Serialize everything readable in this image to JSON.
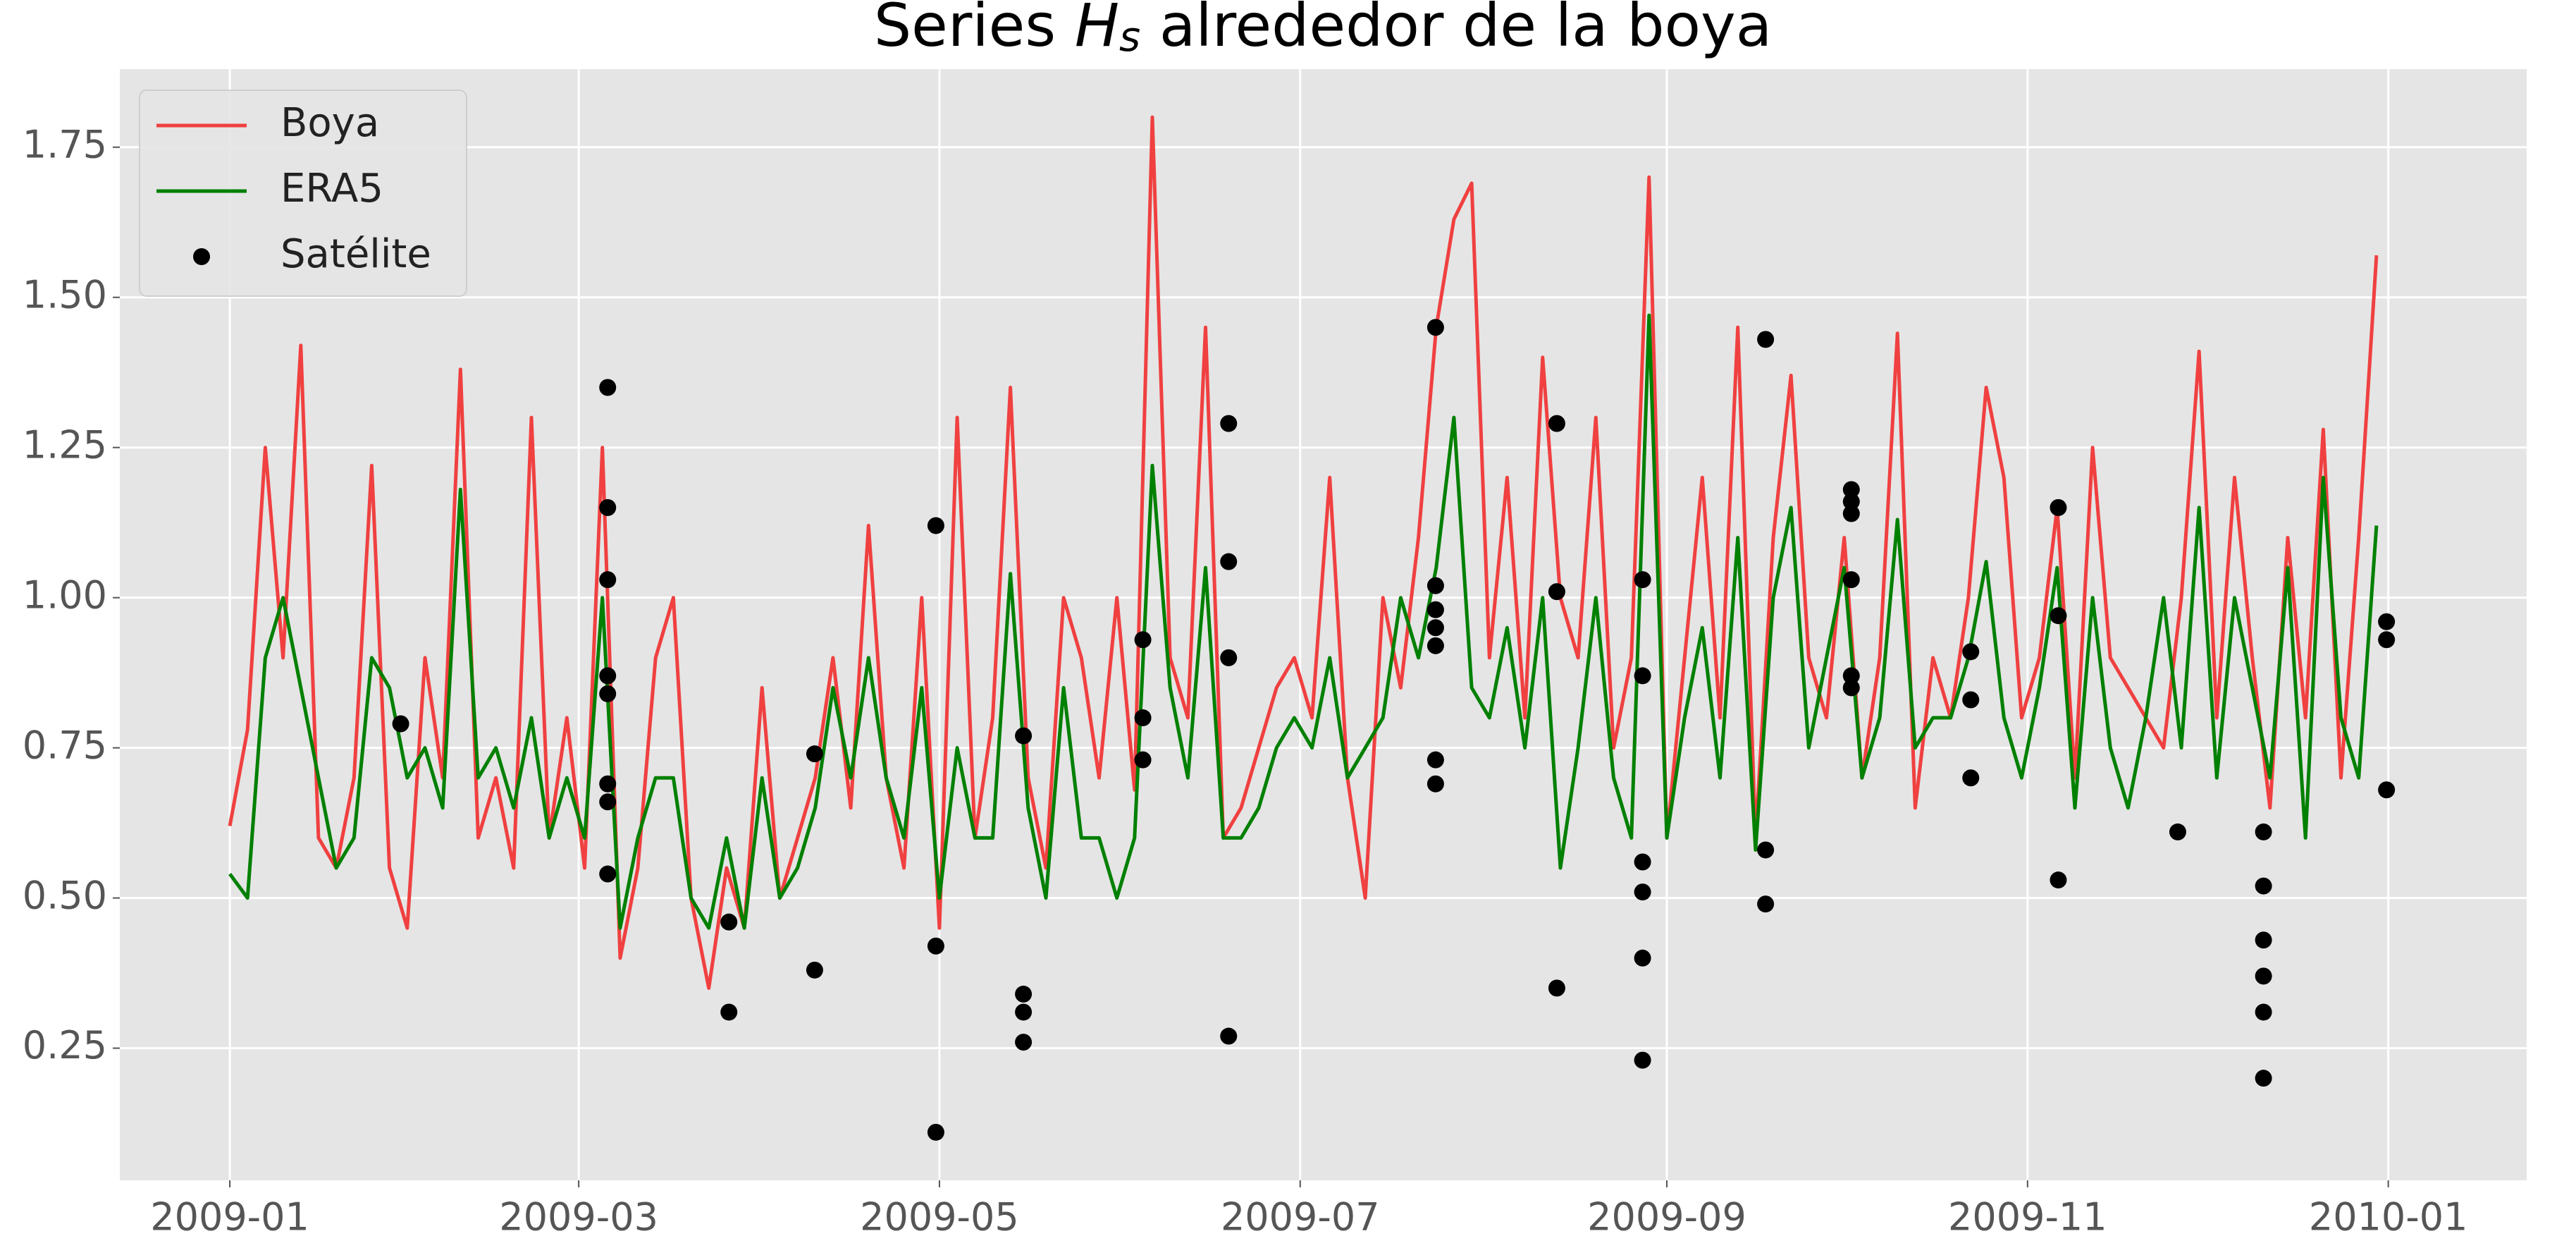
{
  "chart_data": {
    "type": "line",
    "title": {
      "prefix": "Series ",
      "symbol": "H",
      "subscript": "s",
      "suffix": " alrededor de la boya"
    },
    "grid": true,
    "legend": "upper left",
    "background": "#e5e5e5",
    "xlim": [
      -18.6,
      388.4
    ],
    "xticks": [
      {
        "value": 0,
        "label": "2009-01"
      },
      {
        "value": 59,
        "label": "2009-03"
      },
      {
        "value": 120,
        "label": "2009-05"
      },
      {
        "value": 181,
        "label": "2009-07"
      },
      {
        "value": 243,
        "label": "2009-09"
      },
      {
        "value": 304,
        "label": "2009-11"
      },
      {
        "value": 365,
        "label": "2010-01"
      }
    ],
    "ylim": [
      0.03,
      1.88
    ],
    "yticks": [
      {
        "value": 0.25,
        "label": "0.25"
      },
      {
        "value": 0.5,
        "label": "0.50"
      },
      {
        "value": 0.75,
        "label": "0.75"
      },
      {
        "value": 1.0,
        "label": "1.00"
      },
      {
        "value": 1.25,
        "label": "1.25"
      },
      {
        "value": 1.5,
        "label": "1.50"
      },
      {
        "value": 1.75,
        "label": "1.75"
      }
    ],
    "x": [
      0,
      3,
      6,
      9,
      12,
      15,
      18,
      21,
      24,
      27,
      30,
      33,
      36,
      39,
      42,
      45,
      48,
      51,
      54,
      57,
      60,
      63,
      66,
      69,
      72,
      75,
      78,
      81,
      84,
      87,
      90,
      93,
      96,
      99,
      102,
      105,
      108,
      111,
      114,
      117,
      120,
      123,
      126,
      129,
      132,
      135,
      138,
      141,
      144,
      147,
      150,
      153,
      156,
      159,
      162,
      165,
      168,
      171,
      174,
      177,
      180,
      183,
      186,
      189,
      192,
      195,
      198,
      201,
      204,
      207,
      210,
      213,
      216,
      219,
      222,
      225,
      228,
      231,
      234,
      237,
      240,
      243,
      246,
      249,
      252,
      255,
      258,
      261,
      264,
      267,
      270,
      273,
      276,
      279,
      282,
      285,
      288,
      291,
      294,
      297,
      300,
      303,
      306,
      309,
      312,
      315,
      318,
      321,
      324,
      327,
      330,
      333,
      336,
      339,
      342,
      345,
      348,
      351,
      354,
      357,
      360,
      363
    ],
    "series": [
      {
        "name": "Boya",
        "type": "line",
        "color": "#f04040",
        "values": [
          0.62,
          0.78,
          1.25,
          0.9,
          1.42,
          0.6,
          0.55,
          0.7,
          1.22,
          0.55,
          0.45,
          0.9,
          0.7,
          1.38,
          0.6,
          0.7,
          0.55,
          1.3,
          0.6,
          0.8,
          0.55,
          1.25,
          0.4,
          0.55,
          0.9,
          1.0,
          0.5,
          0.35,
          0.55,
          0.45,
          0.85,
          0.5,
          0.6,
          0.7,
          0.9,
          0.65,
          1.12,
          0.7,
          0.55,
          1.0,
          0.45,
          1.3,
          0.6,
          0.8,
          1.35,
          0.7,
          0.55,
          1.0,
          0.9,
          0.7,
          1.0,
          0.68,
          1.8,
          0.9,
          0.8,
          1.45,
          0.6,
          0.65,
          0.75,
          0.85,
          0.9,
          0.8,
          1.2,
          0.7,
          0.5,
          1.0,
          0.85,
          1.1,
          1.45,
          1.63,
          1.69,
          0.9,
          1.2,
          0.8,
          1.4,
          1.0,
          0.9,
          1.3,
          0.75,
          0.9,
          1.7,
          0.6,
          0.9,
          1.2,
          0.8,
          1.45,
          0.6,
          1.1,
          1.37,
          0.9,
          0.8,
          1.1,
          0.7,
          0.9,
          1.44,
          0.65,
          0.9,
          0.8,
          1.0,
          1.35,
          1.2,
          0.8,
          0.9,
          1.15,
          0.7,
          1.25,
          0.9,
          0.85,
          0.8,
          0.75,
          1.0,
          1.41,
          0.8,
          1.2,
          0.9,
          0.65,
          1.1,
          0.8,
          1.28,
          0.7,
          1.1,
          1.57
        ]
      },
      {
        "name": "ERA5",
        "type": "line",
        "color": "#008000",
        "values": [
          0.54,
          0.5,
          0.9,
          1.0,
          0.85,
          0.7,
          0.55,
          0.6,
          0.9,
          0.85,
          0.7,
          0.75,
          0.65,
          1.18,
          0.7,
          0.75,
          0.65,
          0.8,
          0.6,
          0.7,
          0.6,
          1.0,
          0.45,
          0.6,
          0.7,
          0.7,
          0.5,
          0.45,
          0.6,
          0.45,
          0.7,
          0.5,
          0.55,
          0.65,
          0.85,
          0.7,
          0.9,
          0.7,
          0.6,
          0.85,
          0.5,
          0.75,
          0.6,
          0.6,
          1.04,
          0.65,
          0.5,
          0.85,
          0.6,
          0.6,
          0.5,
          0.6,
          1.22,
          0.85,
          0.7,
          1.05,
          0.6,
          0.6,
          0.65,
          0.75,
          0.8,
          0.75,
          0.9,
          0.7,
          0.75,
          0.8,
          1.0,
          0.9,
          1.05,
          1.3,
          0.85,
          0.8,
          0.95,
          0.75,
          1.0,
          0.55,
          0.75,
          1.0,
          0.7,
          0.6,
          1.47,
          0.6,
          0.8,
          0.95,
          0.7,
          1.1,
          0.58,
          1.0,
          1.15,
          0.75,
          0.9,
          1.05,
          0.7,
          0.8,
          1.13,
          0.75,
          0.8,
          0.8,
          0.9,
          1.06,
          0.8,
          0.7,
          0.85,
          1.05,
          0.65,
          1.0,
          0.75,
          0.65,
          0.8,
          1.0,
          0.75,
          1.15,
          0.7,
          1.0,
          0.85,
          0.7,
          1.05,
          0.6,
          1.2,
          0.8,
          0.7,
          1.12
        ]
      },
      {
        "name": "Satélite",
        "type": "scatter",
        "color": "#000000",
        "x": [
          28.9,
          63.9,
          63.9,
          63.9,
          63.9,
          63.9,
          63.9,
          63.9,
          63.9,
          84.4,
          84.4,
          98.9,
          98.9,
          119.4,
          119.4,
          119.4,
          134.2,
          134.2,
          134.2,
          134.2,
          154.4,
          154.4,
          154.4,
          168.9,
          168.9,
          168.9,
          168.9,
          203.9,
          203.9,
          203.9,
          203.9,
          203.9,
          203.9,
          203.9,
          224.4,
          224.4,
          224.4,
          238.9,
          238.9,
          238.9,
          238.9,
          238.9,
          238.9,
          259.7,
          259.7,
          259.7,
          274.2,
          274.2,
          274.2,
          274.2,
          274.2,
          274.2,
          294.4,
          294.4,
          294.4,
          309.2,
          309.2,
          309.2,
          329.4,
          343.9,
          343.9,
          343.9,
          343.9,
          343.9,
          343.9,
          364.7,
          364.7,
          364.7
        ],
        "values": [
          0.79,
          1.35,
          1.15,
          1.03,
          0.87,
          0.84,
          0.69,
          0.66,
          0.54,
          0.46,
          0.31,
          0.74,
          0.38,
          1.12,
          0.42,
          0.11,
          0.77,
          0.34,
          0.31,
          0.26,
          0.93,
          0.8,
          0.73,
          1.29,
          1.06,
          0.9,
          0.27,
          1.45,
          1.02,
          0.98,
          0.95,
          0.92,
          0.73,
          0.69,
          1.29,
          1.01,
          0.35,
          1.03,
          0.87,
          0.56,
          0.51,
          0.4,
          0.23,
          1.43,
          0.58,
          0.49,
          1.18,
          1.16,
          1.14,
          1.03,
          0.87,
          0.85,
          0.91,
          0.83,
          0.7,
          1.15,
          0.97,
          0.53,
          0.61,
          0.61,
          0.52,
          0.43,
          0.37,
          0.31,
          0.2,
          0.96,
          0.93,
          0.68
        ]
      }
    ]
  }
}
